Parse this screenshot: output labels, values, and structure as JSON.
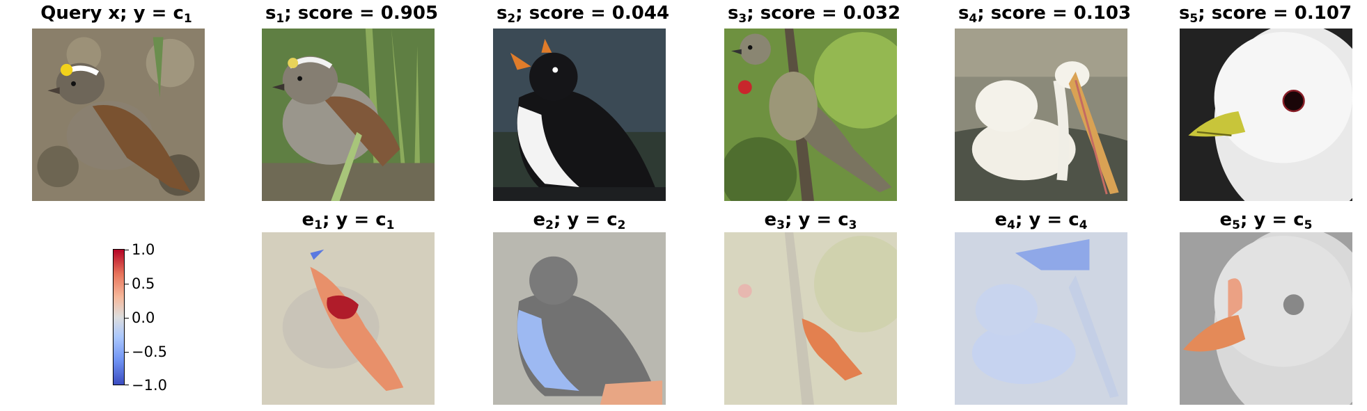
{
  "top_row": [
    {
      "label": "Query x",
      "sep": "; y = ",
      "var": "c",
      "sub": "1",
      "image": "white-throated-sparrow-icon"
    },
    {
      "label": "s",
      "sub": "1",
      "score_text": "; score = 0.905",
      "image": "sparrow-in-grass-icon"
    },
    {
      "label": "s",
      "sub": "2",
      "score_text": "; score = 0.044",
      "image": "puffin-icon"
    },
    {
      "label": "s",
      "sub": "3",
      "score_text": "; score = 0.032",
      "image": "warbler-on-branch-icon"
    },
    {
      "label": "s",
      "sub": "4",
      "score_text": "; score = 0.103",
      "image": "pelican-icon"
    },
    {
      "label": "s",
      "sub": "5",
      "score_text": "; score = 0.107",
      "image": "gull-head-icon"
    }
  ],
  "bottom_row": [
    {
      "label": "e",
      "sub": "1",
      "sep": "; y = ",
      "var": "c",
      "var_sub": "1",
      "image": "explanation-heatmap-icon"
    },
    {
      "label": "e",
      "sub": "2",
      "sep": "; y = ",
      "var": "c",
      "var_sub": "2",
      "image": "explanation-heatmap-icon"
    },
    {
      "label": "e",
      "sub": "3",
      "sep": "; y = ",
      "var": "c",
      "var_sub": "3",
      "image": "explanation-heatmap-icon"
    },
    {
      "label": "e",
      "sub": "4",
      "sep": "; y = ",
      "var": "c",
      "var_sub": "4",
      "image": "explanation-heatmap-icon"
    },
    {
      "label": "e",
      "sub": "5",
      "sep": "; y = ",
      "var": "c",
      "var_sub": "5",
      "image": "explanation-heatmap-icon"
    }
  ],
  "colorbar": {
    "colormap": "coolwarm",
    "ticks": [
      "1.0",
      "0.5",
      "0.0",
      "−0.5",
      "−1.0"
    ],
    "min": -1.0,
    "max": 1.0,
    "colors": {
      "low": "#3b4cc0",
      "mid": "#dddddd",
      "high": "#b40426"
    }
  }
}
